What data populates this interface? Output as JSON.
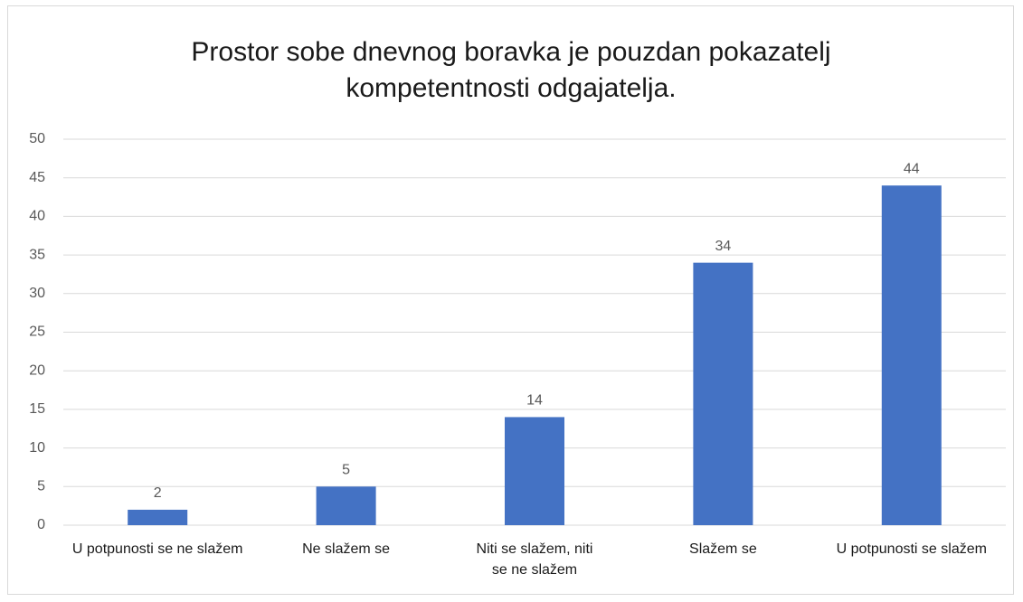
{
  "chart_data": {
    "type": "bar",
    "title": "Prostor sobe dnevnog boravka je pouzdan pokazatelj kompetentnosti odgajatelja.",
    "categories": [
      "U potpunosti se ne slažem",
      "Ne slažem se",
      "Niti se slažem, niti se ne slažem",
      "Slažem se",
      "U potpunosti se slažem"
    ],
    "values": [
      2,
      5,
      14,
      34,
      44
    ],
    "color": "#4472c4",
    "ylim": [
      0,
      50
    ],
    "yticks": [
      0,
      5,
      10,
      15,
      20,
      25,
      30,
      35,
      40,
      45,
      50
    ],
    "grid": true
  }
}
